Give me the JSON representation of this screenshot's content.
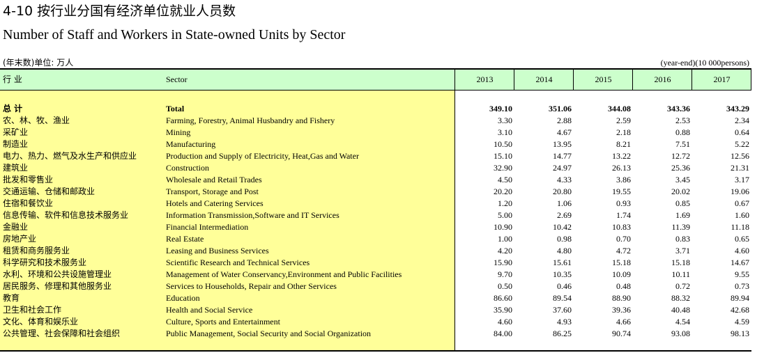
{
  "title_cn": "4-10 按行业分国有经济单位就业人员数",
  "title_en": "Number of Staff and Workers in State-owned Units by Sector",
  "unit_cn": "(年末数)单位: 万人",
  "unit_en": "(year-end)(10 000persons)",
  "header": {
    "col_cn": "行 业",
    "col_en": "Sector",
    "years": [
      "2013",
      "2014",
      "2015",
      "2016",
      "2017"
    ]
  },
  "colors": {
    "left_bg": "#ffff99",
    "header_bg": "#ccffcc"
  },
  "rows": [
    {
      "cn": "总 计",
      "en": "Total",
      "values": [
        "349.10",
        "351.06",
        "344.08",
        "343.36",
        "343.29"
      ]
    },
    {
      "cn": "农、林、牧、渔业",
      "en": "Farming, Forestry, Animal Husbandry and Fishery",
      "values": [
        "3.30",
        "2.88",
        "2.59",
        "2.53",
        "2.34"
      ]
    },
    {
      "cn": "采矿业",
      "en": "Mining",
      "values": [
        "3.10",
        "4.67",
        "2.18",
        "0.88",
        "0.64"
      ]
    },
    {
      "cn": "制造业",
      "en": "Manufacturing",
      "values": [
        "10.50",
        "13.95",
        "8.21",
        "7.51",
        "5.22"
      ]
    },
    {
      "cn": "电力、热力、燃气及水生产和供应业",
      "en": "Production and Supply of Electricity, Heat,Gas and Water",
      "values": [
        "15.10",
        "14.77",
        "13.22",
        "12.72",
        "12.56"
      ]
    },
    {
      "cn": "建筑业",
      "en": "Construction",
      "values": [
        "32.90",
        "24.97",
        "26.13",
        "25.36",
        "21.31"
      ]
    },
    {
      "cn": "批发和零售业",
      "en": "Wholesale and Retail Trades",
      "values": [
        "4.50",
        "4.33",
        "3.86",
        "3.45",
        "3.17"
      ]
    },
    {
      "cn": "交通运输、仓储和邮政业",
      "en": "Transport, Storage and Post",
      "values": [
        "20.20",
        "20.80",
        "19.55",
        "20.02",
        "19.06"
      ]
    },
    {
      "cn": "住宿和餐饮业",
      "en": "Hotels and Catering Services",
      "values": [
        "1.20",
        "1.06",
        "0.93",
        "0.85",
        "0.67"
      ]
    },
    {
      "cn": "信息传输、软件和信息技术服务业",
      "en": "Information Transmission,Software and IT Services",
      "values": [
        "5.00",
        "2.69",
        "1.74",
        "1.69",
        "1.60"
      ]
    },
    {
      "cn": "金融业",
      "en": "Financial Intermediation",
      "values": [
        "10.90",
        "10.42",
        "10.83",
        "11.39",
        "11.18"
      ]
    },
    {
      "cn": "房地产业",
      "en": "Real Estate",
      "values": [
        "1.00",
        "0.98",
        "0.70",
        "0.83",
        "0.65"
      ]
    },
    {
      "cn": "租赁和商务服务业",
      "en": "Leasing and Business Services",
      "values": [
        "4.20",
        "4.80",
        "4.72",
        "3.71",
        "4.60"
      ]
    },
    {
      "cn": "科学研究和技术服务业",
      "en": "Scientific Research and Technical Services",
      "values": [
        "15.90",
        "15.61",
        "15.18",
        "15.18",
        "14.67"
      ]
    },
    {
      "cn": "水利、环境和公共设施管理业",
      "en": "Management of Water Conservancy,Environment and Public Facilities",
      "values": [
        "9.70",
        "10.35",
        "10.09",
        "10.11",
        "9.55"
      ]
    },
    {
      "cn": "居民服务、修理和其他服务业",
      "en": "Services to Households, Repair and Other Services",
      "values": [
        "0.50",
        "0.46",
        "0.48",
        "0.72",
        "0.73"
      ]
    },
    {
      "cn": "教育",
      "en": "Education",
      "values": [
        "86.60",
        "89.54",
        "88.90",
        "88.32",
        "89.94"
      ]
    },
    {
      "cn": "卫生和社会工作",
      "en": "Health and Social Service",
      "values": [
        "35.90",
        "37.60",
        "39.36",
        "40.48",
        "42.68"
      ]
    },
    {
      "cn": "文化、体育和娱乐业",
      "en": "Culture, Sports and Entertainment",
      "values": [
        "4.60",
        "4.93",
        "4.66",
        "4.54",
        "4.59"
      ]
    },
    {
      "cn": "公共管理、社会保障和社会组织",
      "en": "Public Management, Social Security and Social Organization",
      "values": [
        "84.00",
        "86.25",
        "90.74",
        "93.08",
        "98.13"
      ]
    }
  ]
}
